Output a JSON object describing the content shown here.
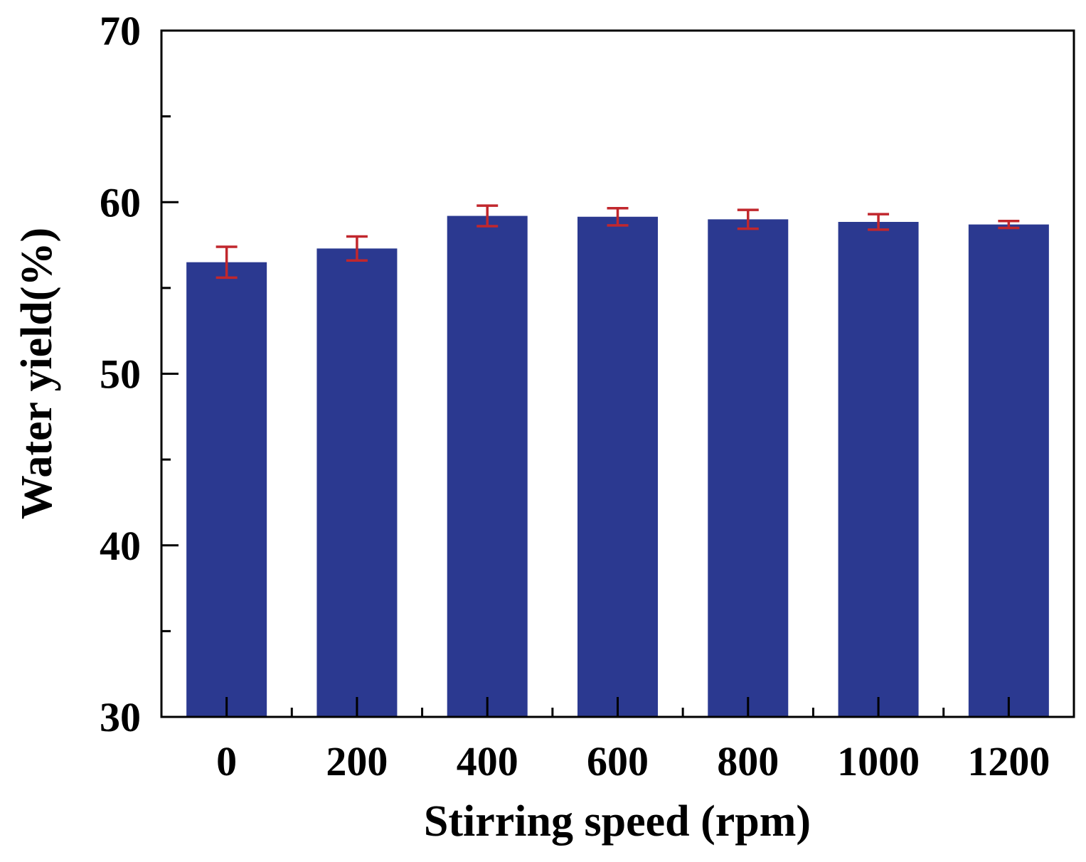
{
  "chart_data": {
    "type": "bar",
    "title": "",
    "xlabel": "Stirring speed (rpm)",
    "ylabel": "Water yield(%)",
    "categories": [
      "0",
      "200",
      "400",
      "600",
      "800",
      "1000",
      "1200"
    ],
    "values": [
      56.5,
      57.3,
      59.2,
      59.15,
      59.0,
      58.85,
      58.7
    ],
    "errors": [
      0.9,
      0.7,
      0.6,
      0.5,
      0.55,
      0.45,
      0.2
    ],
    "ylim": [
      30,
      70
    ],
    "yticks": [
      30,
      40,
      50,
      60,
      70
    ],
    "ytick_labels": [
      "30",
      "40",
      "50",
      "60",
      "70"
    ],
    "grid": false,
    "bar_color": "#2b3990",
    "error_color": "#c1272d"
  }
}
